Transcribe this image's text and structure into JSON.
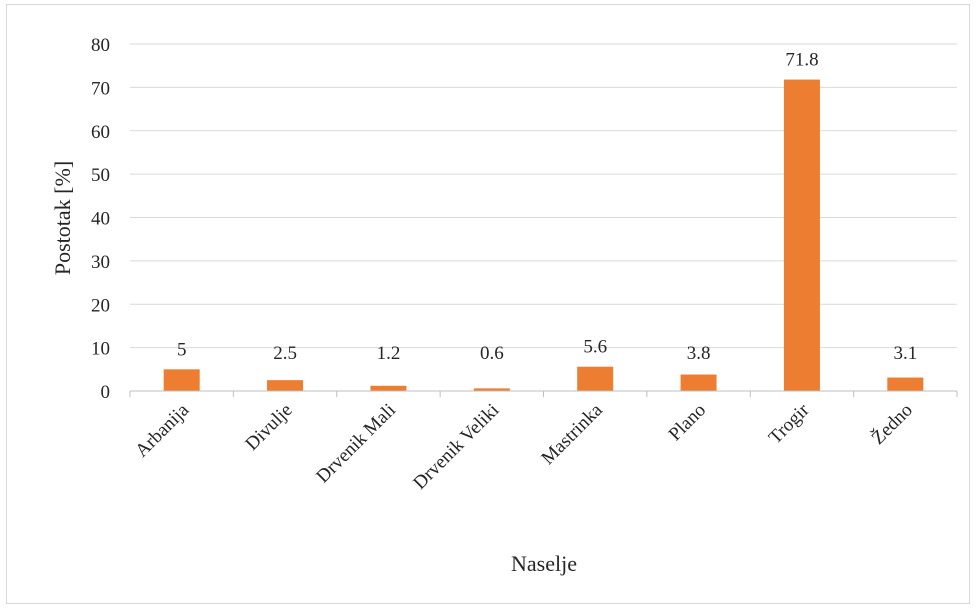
{
  "chart_data": {
    "type": "bar",
    "title": "",
    "partial_title_text": "",
    "xlabel": "Naselje",
    "ylabel": "Postotak [%]",
    "ylim": [
      0,
      80
    ],
    "yticks": [
      0,
      10,
      20,
      30,
      40,
      50,
      60,
      70,
      80
    ],
    "categories": [
      "Arbanija",
      "Divulje",
      "Drvenik Mali",
      "Drvenik Veliki",
      "Mastrinka",
      "Plano",
      "Trogir",
      "Žedno"
    ],
    "values": [
      5,
      2.5,
      1.2,
      0.6,
      5.6,
      3.8,
      71.8,
      3.1
    ],
    "data_labels": [
      "5",
      "2.5",
      "1.2",
      "0.6",
      "5.6",
      "3.8",
      "71.8",
      "3.1"
    ],
    "bar_color": "#ed7d31",
    "grid": true,
    "legend": "none"
  }
}
